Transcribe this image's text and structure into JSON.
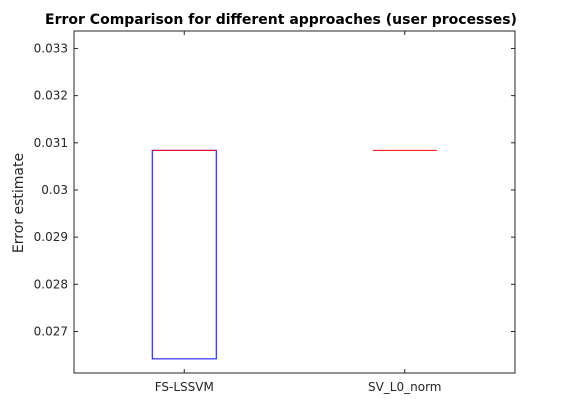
{
  "chart_data": {
    "type": "box",
    "title": "Error Comparison for different approaches (user processes)",
    "xlabel": "",
    "ylabel": "Error estimate",
    "categories": [
      "FS-LSSVM",
      "SV_L0_norm"
    ],
    "boxes": [
      {
        "name": "FS-LSSVM",
        "q1": 0.02642,
        "median": 0.03084,
        "q3": 0.03084
      },
      {
        "name": "SV_L0_norm",
        "q1": 0.03084,
        "median": 0.03084,
        "q3": 0.03084
      }
    ],
    "ylim": [
      0.02612,
      0.03337
    ],
    "yticks": [
      "0.027",
      "0.028",
      "0.029",
      "0.03",
      "0.031",
      "0.032",
      "0.033"
    ],
    "ytick_values": [
      0.027,
      0.028,
      0.029,
      0.03,
      0.031,
      0.032,
      0.033
    ],
    "grid": false,
    "colors": {
      "box": "#0000ff",
      "median": "#ff0000",
      "axis": "#262626"
    }
  }
}
